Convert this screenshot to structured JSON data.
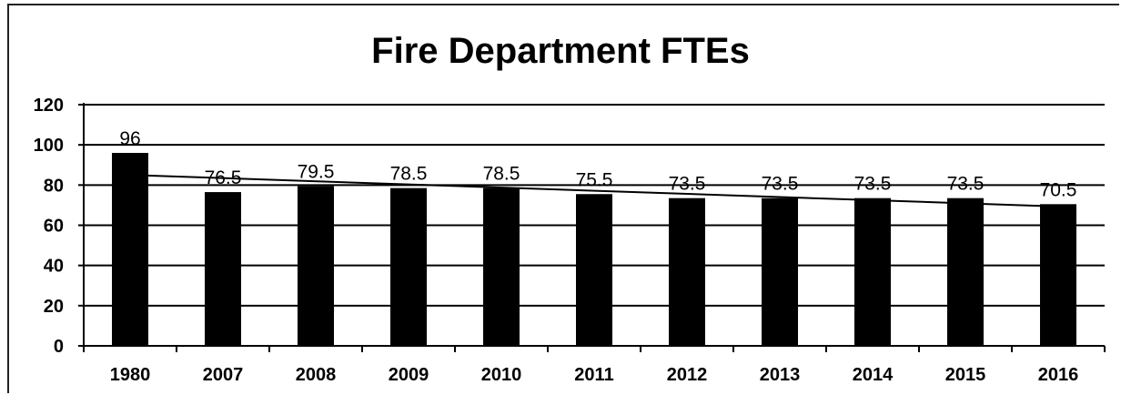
{
  "chart_data": {
    "type": "bar",
    "title": "Fire Department FTEs",
    "categories": [
      "1980",
      "2007",
      "2008",
      "2009",
      "2010",
      "2011",
      "2012",
      "2013",
      "2014",
      "2015",
      "2016"
    ],
    "series": [
      {
        "values": [
          96,
          76.5,
          79.5,
          78.5,
          78.5,
          75.5,
          73.5,
          73.5,
          73.5,
          73.5,
          70.5
        ]
      }
    ],
    "data_labels": [
      "96",
      "76.5",
      "79.5",
      "78.5",
      "78.5",
      "75.5",
      "73.5",
      "73.5",
      "73.5",
      "73.5",
      "70.5"
    ],
    "trendline": {
      "type": "linear"
    },
    "ylim": [
      0,
      120
    ],
    "yticks": [
      0,
      20,
      40,
      60,
      80,
      100,
      120
    ],
    "grid": true,
    "bar_color": "#000000",
    "xlabel": "",
    "ylabel": ""
  }
}
